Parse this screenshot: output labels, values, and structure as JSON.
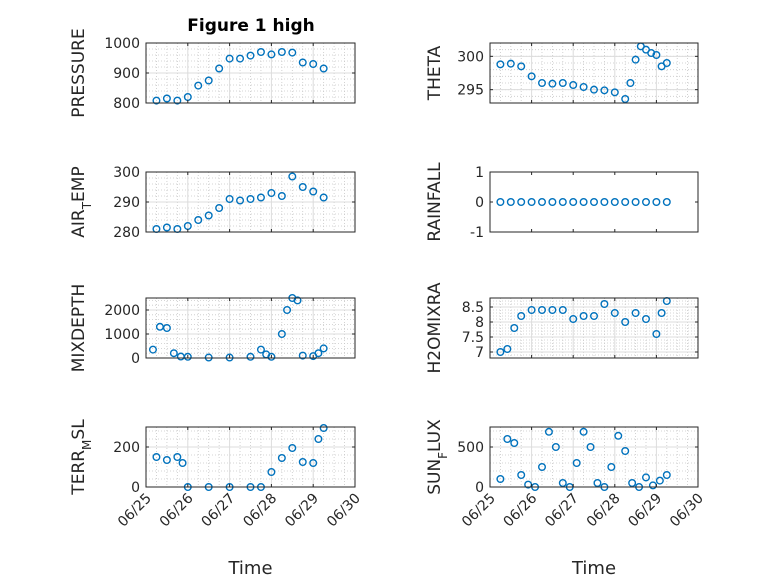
{
  "figure_title": "Figure 1 high",
  "x_axis_label": "Time",
  "x_tick_labels": [
    "06/25",
    "06/26",
    "06/27",
    "06/28",
    "06/29",
    "06/30"
  ],
  "marker_color": "#0072BD",
  "chart_data": [
    {
      "type": "scatter",
      "title": "Figure 1 high",
      "ylabel_main": "PRESSURE",
      "ylabel_sub": "",
      "ylabel_tail": "",
      "xlabel": "",
      "xlim": [
        "06/25",
        "06/30"
      ],
      "ylim": [
        800,
        1000
      ],
      "yticks": [
        800,
        900,
        1000
      ],
      "grid": true,
      "minor_grid": true,
      "x": [
        "06/25 06:00",
        "06/25 12:00",
        "06/25 18:00",
        "06/26 00:00",
        "06/26 06:00",
        "06/26 12:00",
        "06/26 18:00",
        "06/27 00:00",
        "06/27 06:00",
        "06/27 12:00",
        "06/27 18:00",
        "06/28 00:00",
        "06/28 06:00",
        "06/28 12:00",
        "06/28 18:00",
        "06/29 00:00",
        "06/29 06:00"
      ],
      "values": [
        808,
        815,
        808,
        820,
        858,
        875,
        915,
        948,
        948,
        958,
        970,
        962,
        970,
        968,
        935,
        930,
        915
      ]
    },
    {
      "type": "scatter",
      "title": "",
      "ylabel_main": "THETA",
      "ylabel_sub": "",
      "ylabel_tail": "",
      "xlabel": "",
      "xlim": [
        "06/25",
        "06/30"
      ],
      "ylim": [
        293,
        302
      ],
      "yticks": [
        295,
        300
      ],
      "grid": true,
      "minor_grid": true,
      "x": [
        "06/25 06:00",
        "06/25 12:00",
        "06/25 18:00",
        "06/26 00:00",
        "06/26 06:00",
        "06/26 12:00",
        "06/26 18:00",
        "06/27 00:00",
        "06/27 06:00",
        "06/27 12:00",
        "06/27 18:00",
        "06/28 00:00",
        "06/28 06:00",
        "06/28 09:00",
        "06/28 12:00",
        "06/28 15:00",
        "06/28 18:00",
        "06/28 21:00",
        "06/29 00:00",
        "06/29 03:00",
        "06/29 06:00"
      ],
      "values": [
        298.8,
        298.9,
        298.5,
        297.0,
        296.0,
        295.9,
        296.0,
        295.7,
        295.4,
        295.0,
        294.9,
        294.6,
        293.6,
        296.0,
        299.5,
        301.5,
        301.0,
        300.5,
        300.2,
        298.5,
        299.0
      ]
    },
    {
      "type": "scatter",
      "title": "",
      "ylabel_main": "AIR",
      "ylabel_sub": "T",
      "ylabel_tail": "EMP",
      "xlabel": "",
      "xlim": [
        "06/25",
        "06/30"
      ],
      "ylim": [
        280,
        300
      ],
      "yticks": [
        280,
        290,
        300
      ],
      "grid": true,
      "minor_grid": true,
      "x": [
        "06/25 06:00",
        "06/25 12:00",
        "06/25 18:00",
        "06/26 00:00",
        "06/26 06:00",
        "06/26 12:00",
        "06/26 18:00",
        "06/27 00:00",
        "06/27 06:00",
        "06/27 12:00",
        "06/27 18:00",
        "06/28 00:00",
        "06/28 06:00",
        "06/28 12:00",
        "06/28 18:00",
        "06/29 00:00",
        "06/29 06:00"
      ],
      "values": [
        281,
        281.5,
        281,
        282,
        284,
        285.5,
        288,
        291,
        290.5,
        291,
        291.5,
        293,
        292,
        298.5,
        295,
        293.5,
        291.5
      ]
    },
    {
      "type": "scatter",
      "title": "",
      "ylabel_main": "RAINFALL",
      "ylabel_sub": "",
      "ylabel_tail": "",
      "xlabel": "",
      "xlim": [
        "06/25",
        "06/30"
      ],
      "ylim": [
        -1,
        1
      ],
      "yticks": [
        -1,
        0,
        1
      ],
      "grid": false,
      "minor_grid": false,
      "x": [
        "06/25 06:00",
        "06/25 12:00",
        "06/25 18:00",
        "06/26 00:00",
        "06/26 06:00",
        "06/26 12:00",
        "06/26 18:00",
        "06/27 00:00",
        "06/27 06:00",
        "06/27 12:00",
        "06/27 18:00",
        "06/28 00:00",
        "06/28 06:00",
        "06/28 12:00",
        "06/28 18:00",
        "06/29 00:00",
        "06/29 06:00"
      ],
      "values": [
        0,
        0,
        0,
        0,
        0,
        0,
        0,
        0,
        0,
        0,
        0,
        0,
        0,
        0,
        0,
        0,
        0
      ]
    },
    {
      "type": "scatter",
      "title": "",
      "ylabel_main": "MIXDEPTH",
      "ylabel_sub": "",
      "ylabel_tail": "",
      "xlabel": "",
      "xlim": [
        "06/25",
        "06/30"
      ],
      "ylim": [
        0,
        2500
      ],
      "yticks": [
        0,
        1000,
        2000
      ],
      "grid": true,
      "minor_grid": true,
      "x": [
        "06/25 04:00",
        "06/25 08:00",
        "06/25 12:00",
        "06/25 16:00",
        "06/25 20:00",
        "06/26 00:00",
        "06/26 12:00",
        "06/27 00:00",
        "06/27 12:00",
        "06/27 18:00",
        "06/27 21:00",
        "06/28 00:00",
        "06/28 06:00",
        "06/28 09:00",
        "06/28 12:00",
        "06/28 15:00",
        "06/28 18:00",
        "06/29 00:00",
        "06/29 03:00",
        "06/29 06:00"
      ],
      "values": [
        350,
        1300,
        1250,
        200,
        60,
        50,
        20,
        20,
        50,
        350,
        150,
        50,
        1000,
        2000,
        2500,
        2400,
        100,
        80,
        200,
        400
      ]
    },
    {
      "type": "scatter",
      "title": "",
      "ylabel_main": "H2OMIXRA",
      "ylabel_sub": "",
      "ylabel_tail": "",
      "xlabel": "",
      "xlim": [
        "06/25",
        "06/30"
      ],
      "ylim": [
        6.8,
        8.8
      ],
      "yticks": [
        7,
        7.5,
        8,
        8.5
      ],
      "grid": true,
      "minor_grid": true,
      "x": [
        "06/25 06:00",
        "06/25 10:00",
        "06/25 14:00",
        "06/25 18:00",
        "06/26 00:00",
        "06/26 06:00",
        "06/26 12:00",
        "06/26 18:00",
        "06/27 00:00",
        "06/27 06:00",
        "06/27 12:00",
        "06/27 18:00",
        "06/28 00:00",
        "06/28 06:00",
        "06/28 12:00",
        "06/28 18:00",
        "06/29 00:00",
        "06/29 03:00",
        "06/29 06:00"
      ],
      "values": [
        7.0,
        7.1,
        7.8,
        8.2,
        8.4,
        8.4,
        8.4,
        8.4,
        8.1,
        8.2,
        8.2,
        8.6,
        8.3,
        8.0,
        8.3,
        8.1,
        7.6,
        8.3,
        8.7
      ]
    },
    {
      "type": "scatter",
      "title": "",
      "ylabel_main": "TERR",
      "ylabel_sub": "M",
      "ylabel_tail": "SL",
      "xlabel": "Time",
      "xlim": [
        "06/25",
        "06/30"
      ],
      "ylim": [
        0,
        300
      ],
      "yticks": [
        0,
        200
      ],
      "grid": true,
      "minor_grid": true,
      "x": [
        "06/25 06:00",
        "06/25 12:00",
        "06/25 18:00",
        "06/25 21:00",
        "06/26 00:00",
        "06/26 12:00",
        "06/27 00:00",
        "06/27 12:00",
        "06/27 18:00",
        "06/28 00:00",
        "06/28 06:00",
        "06/28 12:00",
        "06/28 18:00",
        "06/29 00:00",
        "06/29 03:00",
        "06/29 06:00"
      ],
      "values": [
        150,
        135,
        150,
        120,
        0,
        0,
        0,
        0,
        0,
        75,
        145,
        195,
        125,
        120,
        240,
        295
      ]
    },
    {
      "type": "scatter",
      "title": "",
      "ylabel_main": "SUN",
      "ylabel_sub": "F",
      "ylabel_tail": "LUX",
      "xlabel": "Time",
      "xlim": [
        "06/25",
        "06/30"
      ],
      "ylim": [
        0,
        750
      ],
      "yticks": [
        0,
        500
      ],
      "grid": true,
      "minor_grid": true,
      "x": [
        "06/25 06:00",
        "06/25 10:00",
        "06/25 14:00",
        "06/25 18:00",
        "06/25 22:00",
        "06/26 02:00",
        "06/26 06:00",
        "06/26 10:00",
        "06/26 14:00",
        "06/26 18:00",
        "06/26 22:00",
        "06/27 02:00",
        "06/27 06:00",
        "06/27 10:00",
        "06/27 14:00",
        "06/27 18:00",
        "06/27 22:00",
        "06/28 02:00",
        "06/28 06:00",
        "06/28 10:00",
        "06/28 14:00",
        "06/28 18:00",
        "06/28 22:00",
        "06/29 02:00",
        "06/29 06:00"
      ],
      "values": [
        100,
        600,
        550,
        150,
        30,
        0,
        250,
        690,
        500,
        50,
        0,
        300,
        690,
        500,
        50,
        0,
        250,
        640,
        450,
        50,
        0,
        120,
        20,
        80,
        150
      ]
    }
  ]
}
